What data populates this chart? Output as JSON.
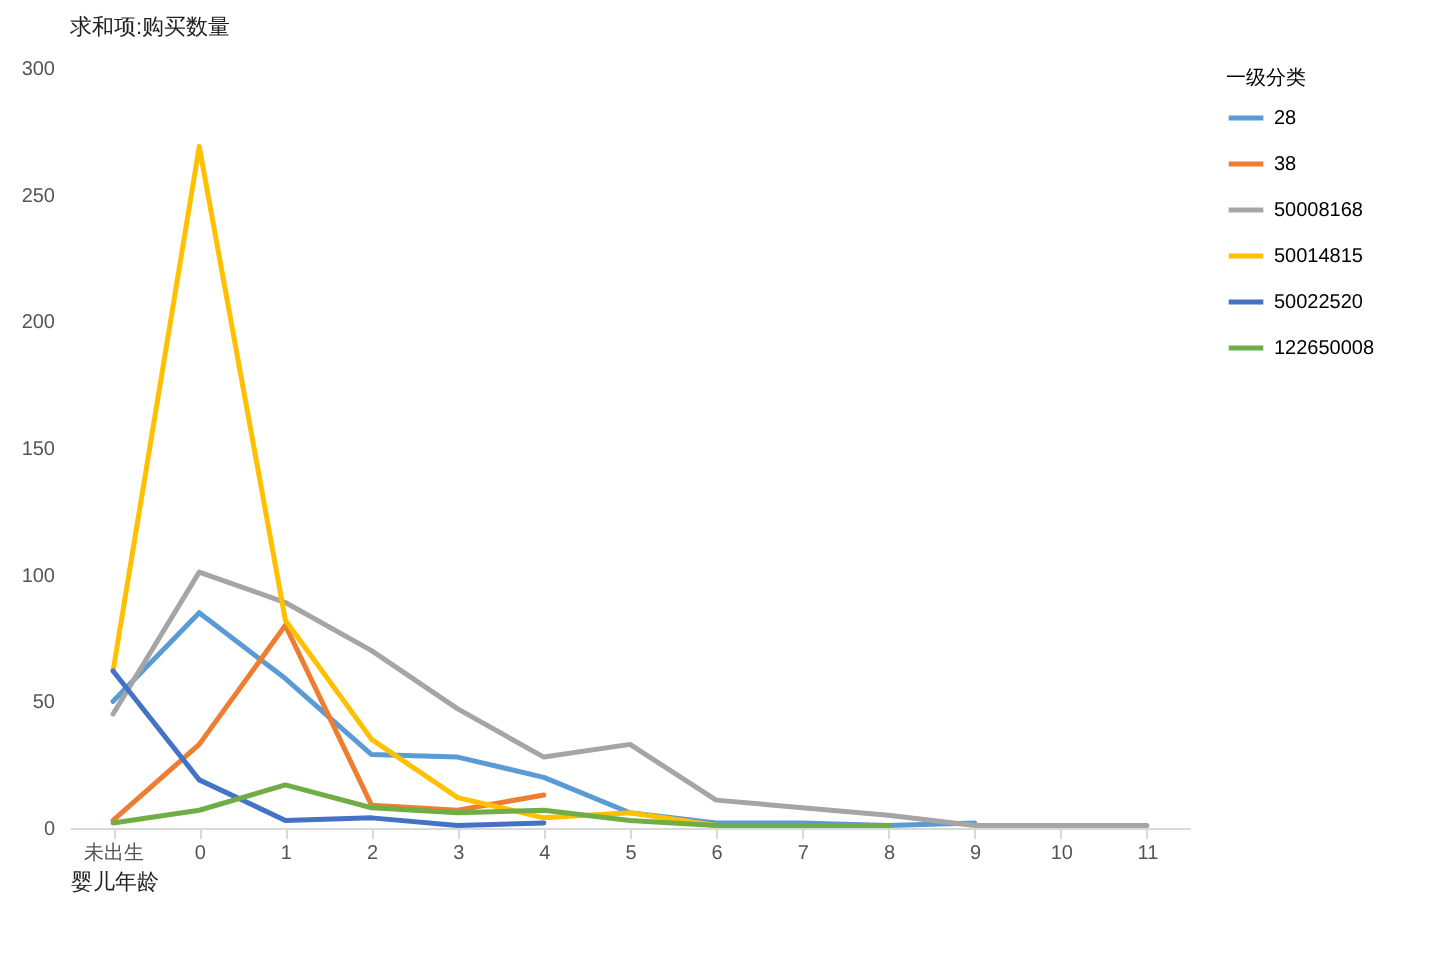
{
  "chart_data": {
    "type": "line",
    "title": "求和项:购买数量",
    "xlabel": "婴儿年龄",
    "legend_title": "一级分类",
    "categories": [
      "未出生",
      "0",
      "1",
      "2",
      "3",
      "4",
      "5",
      "6",
      "7",
      "8",
      "9",
      "10",
      "11"
    ],
    "ylim": [
      0,
      300
    ],
    "yticks": [
      0,
      50,
      100,
      150,
      200,
      250,
      300
    ],
    "grid": false,
    "legend": "right",
    "marker": "none",
    "line_style": "solid",
    "series": [
      {
        "name": "28",
        "color": "#5b9bd5",
        "values": [
          50,
          85,
          59,
          29,
          28,
          20,
          6,
          2,
          2,
          1,
          2,
          null,
          null
        ]
      },
      {
        "name": "38",
        "color": "#ed7d31",
        "values": [
          3,
          33,
          80,
          9,
          7,
          13,
          null,
          null,
          null,
          null,
          null,
          null,
          null
        ]
      },
      {
        "name": "50008168",
        "color": "#a5a5a5",
        "values": [
          45,
          101,
          89,
          70,
          47,
          28,
          33,
          11,
          8,
          5,
          1,
          1,
          1
        ]
      },
      {
        "name": "50014815",
        "color": "#ffc000",
        "values": [
          62,
          269,
          82,
          35,
          12,
          4,
          6,
          1,
          null,
          null,
          null,
          null,
          null
        ]
      },
      {
        "name": "50022520",
        "color": "#4472c4",
        "values": [
          62,
          19,
          3,
          4,
          1,
          2,
          null,
          null,
          null,
          null,
          null,
          null,
          null
        ]
      },
      {
        "name": "122650008",
        "color": "#70ad47",
        "values": [
          2,
          7,
          17,
          8,
          6,
          7,
          3,
          1,
          1,
          1,
          null,
          null,
          null
        ]
      }
    ]
  }
}
